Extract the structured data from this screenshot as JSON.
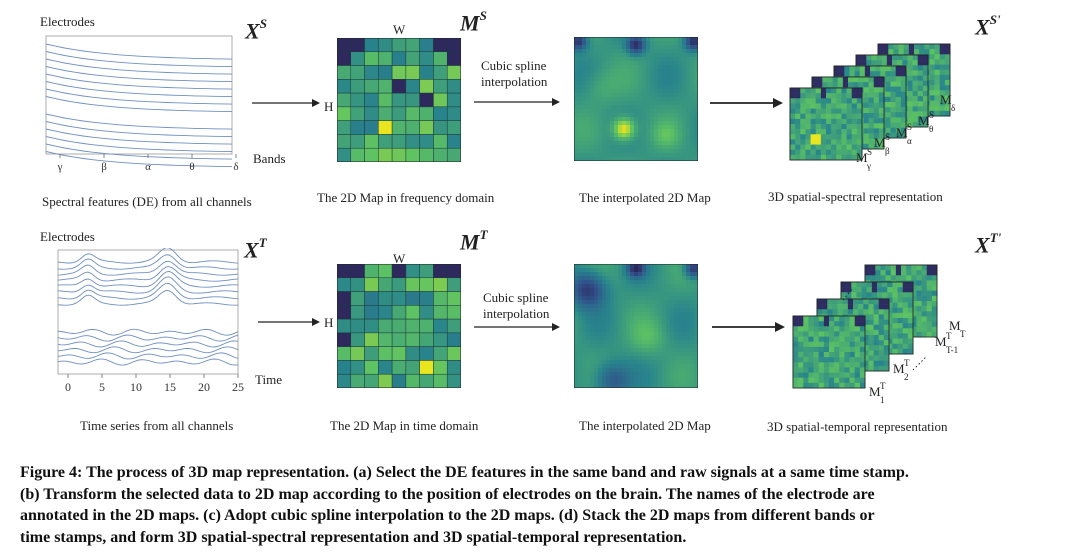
{
  "top_row": {
    "signals": {
      "ylabel": "Electrodes",
      "xlabel": "Bands",
      "ticks": [
        "γ",
        "β",
        "α",
        "θ",
        "δ"
      ],
      "caption": "Spectral features (DE) from all channels",
      "symbol_base": "X",
      "symbol_sup": "S"
    },
    "map2d": {
      "w_label": "W",
      "h_label": "H",
      "caption": "The 2D Map in frequency domain",
      "symbol_base": "M",
      "symbol_sup": "S"
    },
    "arrow_text": [
      "Cubic spline",
      "interpolation"
    ],
    "interp_caption": "The interpolated 2D Map",
    "stack": {
      "caption": "3D spatial-spectral representation",
      "symbol_base": "X",
      "symbol_sup": "S'",
      "labels": [
        {
          "base": "M",
          "sup": "S",
          "sub": "γ"
        },
        {
          "base": "M",
          "sup": "S",
          "sub": "β"
        },
        {
          "base": "M",
          "sup": "S",
          "sub": "α"
        },
        {
          "base": "M",
          "sup": "S",
          "sub": "θ"
        },
        {
          "base": "M",
          "sup": "",
          "sub": "δ"
        }
      ]
    }
  },
  "bottom_row": {
    "signals": {
      "ylabel": "Electrodes",
      "xlabel": "Time",
      "ticks": [
        "0",
        "5",
        "10",
        "15",
        "20",
        "25"
      ],
      "caption": "Time series from all channels",
      "symbol_base": "X",
      "symbol_sup": "T"
    },
    "map2d": {
      "w_label": "W",
      "h_label": "H",
      "caption": "The 2D Map in time domain",
      "symbol_base": "M",
      "symbol_sup": "T"
    },
    "arrow_text": [
      "Cubic spline",
      "interpolation"
    ],
    "interp_caption": "The interpolated 2D Map",
    "stack": {
      "caption": "3D spatial-temporal representation",
      "symbol_base": "X",
      "symbol_sup": "T'",
      "labels": [
        {
          "base": "M",
          "sup": "T",
          "sub": "1"
        },
        {
          "base": "M",
          "sup": "T",
          "sub": "2"
        },
        {
          "base": "M",
          "sup": "T",
          "sub": "T-1"
        },
        {
          "base": "M",
          "sup": "",
          "sub": "T"
        }
      ]
    }
  },
  "caption_lines": [
    "Figure 4: The process of 3D map representation. (a) Select the DE features in the same band and raw signals at a same time stamp.",
    "(b) Transform the selected data to 2D map according to the position of electrodes on the brain. The names of the electrode are",
    "annotated in the 2D maps. (c) Adopt cubic spline interpolation to the 2D maps. (d) Stack the 2D maps from different bands or",
    "time stamps, and form 3D spatial-spectral representation and 3D spatial-temporal representation."
  ],
  "colors": {
    "signal_line": "#6f8fc0",
    "map_dark": "#2b1a4c",
    "map_mid": "#2f7f8e",
    "map_light": "#7cc860",
    "map_hot": "#e9e51f"
  }
}
